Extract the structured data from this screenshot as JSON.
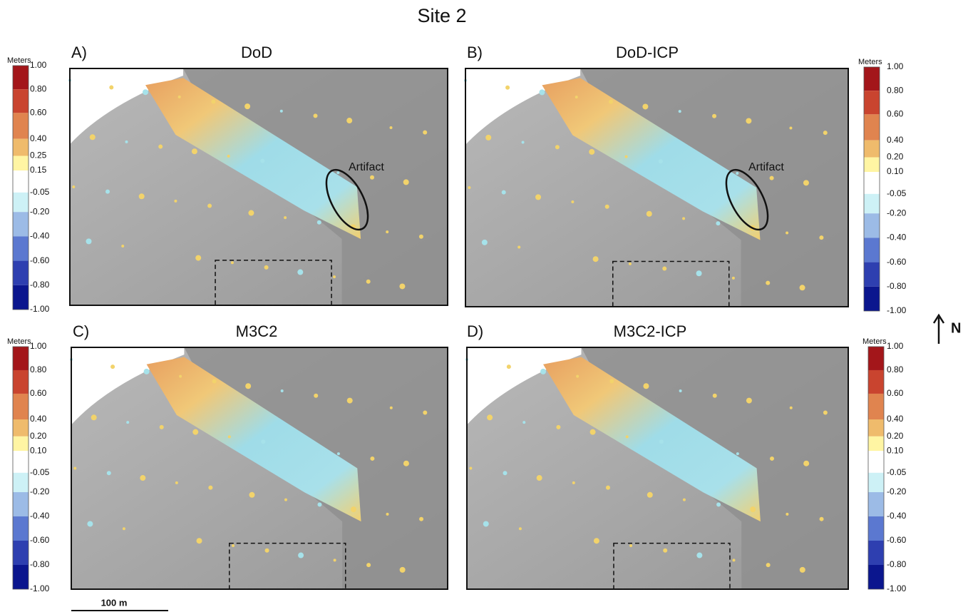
{
  "title": "Site 2",
  "panels": [
    {
      "label": "A)",
      "title": "DoD",
      "annotation": "Artifact",
      "colorbar": {
        "title": "Meters",
        "ticks": [
          "1.00",
          "0.80",
          "0.60",
          "0.40",
          "0.25",
          "0.15",
          "-0.05",
          "-0.20",
          "-0.40",
          "-0.60",
          "-0.80",
          "-1.00"
        ]
      }
    },
    {
      "label": "B)",
      "title": "DoD-ICP",
      "annotation": "Artifact",
      "colorbar": {
        "title": "Meters",
        "ticks": [
          "1.00",
          "0.80",
          "0.60",
          "0.40",
          "0.20",
          "0.10",
          "-0.05",
          "-0.20",
          "-0.40",
          "-0.60",
          "-0.80",
          "-1.00"
        ]
      }
    },
    {
      "label": "C)",
      "title": "M3C2",
      "colorbar": {
        "title": "Meters",
        "ticks": [
          "1.00",
          "0.80",
          "0.60",
          "0.40",
          "0.20",
          "0.10",
          "-0.05",
          "-0.20",
          "-0.40",
          "-0.60",
          "-0.80",
          "-1.00"
        ]
      }
    },
    {
      "label": "D)",
      "title": "M3C2-ICP",
      "colorbar": {
        "title": "Meters",
        "ticks": [
          "1.00",
          "0.80",
          "0.60",
          "0.40",
          "0.20",
          "0.10",
          "-0.05",
          "-0.20",
          "-0.40",
          "-0.60",
          "-0.80",
          "-1.00"
        ]
      }
    }
  ],
  "north": "N",
  "scale_bar": "100 m"
}
